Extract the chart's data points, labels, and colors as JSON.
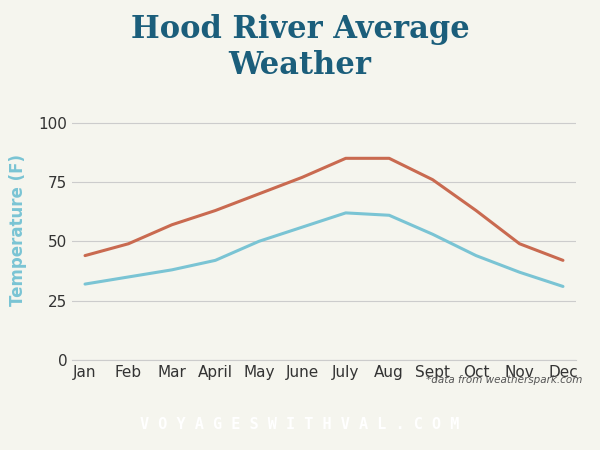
{
  "months": [
    "Jan",
    "Feb",
    "Mar",
    "April",
    "May",
    "June",
    "July",
    "Aug",
    "Sept",
    "Oct",
    "Nov",
    "Dec"
  ],
  "high_temps": [
    44,
    49,
    57,
    63,
    70,
    77,
    85,
    85,
    76,
    63,
    49,
    42
  ],
  "low_temps": [
    32,
    35,
    38,
    42,
    50,
    56,
    62,
    61,
    53,
    44,
    37,
    31
  ],
  "high_color": "#C96A50",
  "low_color": "#7AC4D4",
  "title": "Hood River Average\nWeather",
  "title_color": "#1B5E7B",
  "ylabel": "Temperature (F)",
  "ylabel_color": "#7AC4D4",
  "ylim": [
    0,
    110
  ],
  "yticks": [
    0,
    25,
    50,
    75,
    100
  ],
  "background_color": "#F5F5EE",
  "grid_color": "#CCCCCC",
  "footer_bg": "#2E6E80",
  "footer_text": "V O Y A G E S W I T H V A L . C O M",
  "footer_text_color": "#FFFFFF",
  "source_text": "*data from weatherspark.com",
  "line_width": 2.2,
  "title_fontsize": 22,
  "axis_fontsize": 11,
  "ylabel_fontsize": 12
}
